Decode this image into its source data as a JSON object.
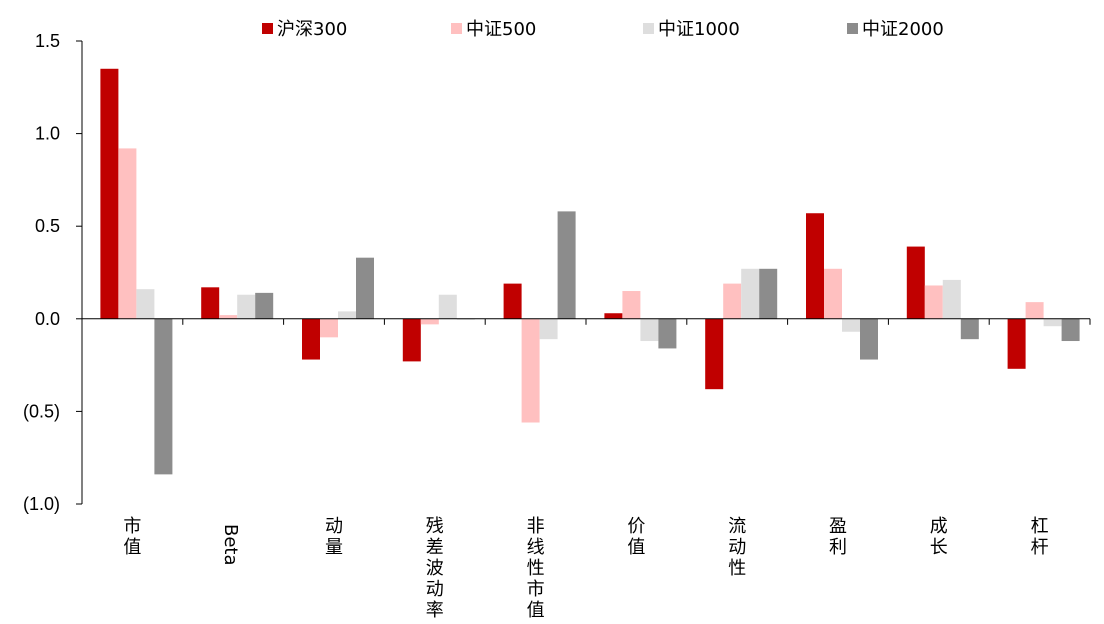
{
  "chart_data": {
    "type": "bar",
    "title": "",
    "xlabel": "",
    "ylabel": "",
    "ylim": [
      -1.0,
      1.5
    ],
    "y_ticks": [
      1.5,
      1.0,
      0.5,
      0.0,
      -0.5,
      -1.0
    ],
    "y_tick_labels": [
      "1.5",
      "1.0",
      "0.5",
      "0.0",
      "(0.5)",
      "(1.0)"
    ],
    "grid": false,
    "legend_position": "top",
    "categories": [
      "市值",
      "Beta",
      "动量",
      "残差波动率",
      "非线性市值",
      "价值",
      "流动性",
      "盈利",
      "成长",
      "杠杆"
    ],
    "category_vertical": [
      true,
      false,
      true,
      true,
      true,
      true,
      true,
      true,
      true,
      true
    ],
    "series": [
      {
        "name": "沪深300",
        "color": "#c00000",
        "values": [
          1.35,
          0.17,
          -0.22,
          -0.23,
          0.19,
          0.03,
          -0.38,
          0.57,
          0.39,
          -0.27
        ]
      },
      {
        "name": "中证500",
        "color": "#ffc0c0",
        "values": [
          0.92,
          0.02,
          -0.1,
          -0.03,
          -0.56,
          0.15,
          0.19,
          0.27,
          0.18,
          0.09
        ]
      },
      {
        "name": "中证1000",
        "color": "#dedede",
        "values": [
          0.16,
          0.13,
          0.04,
          0.13,
          -0.11,
          -0.12,
          0.27,
          -0.07,
          0.21,
          -0.04
        ]
      },
      {
        "name": "中证2000",
        "color": "#8c8c8c",
        "values": [
          -0.84,
          0.14,
          0.33,
          0.0,
          0.58,
          -0.16,
          0.27,
          -0.22,
          -0.11,
          -0.12
        ]
      }
    ]
  }
}
